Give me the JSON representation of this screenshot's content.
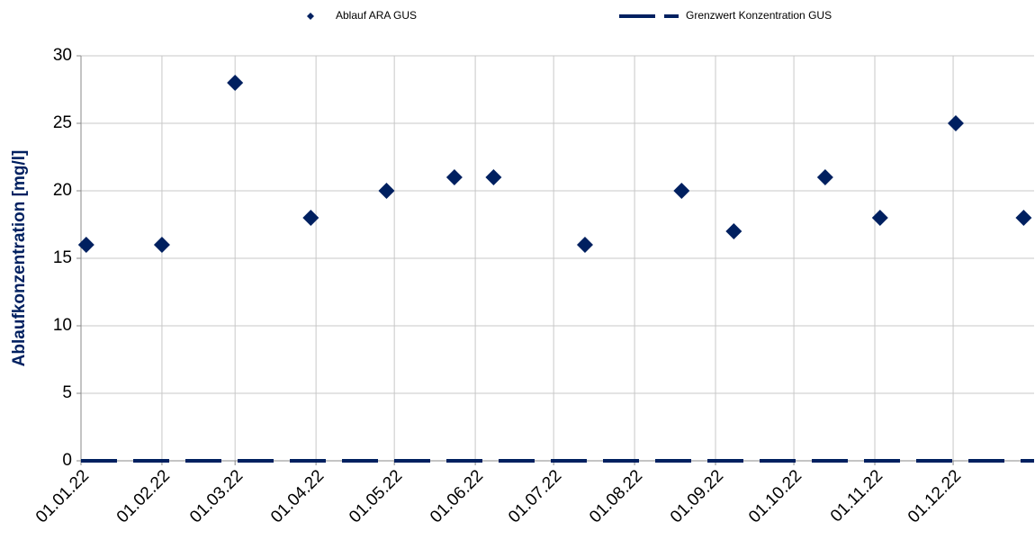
{
  "chart_data": {
    "type": "scatter",
    "y_label": "Ablaufkonzentration [mg/l]",
    "series": [
      {
        "name": "Ablauf ARA GUS",
        "color": "#002060",
        "marker": "diamond",
        "x": [
          "2022-01-03",
          "2022-02-01",
          "2022-03-01",
          "2022-03-30",
          "2022-04-28",
          "2022-05-24",
          "2022-06-08",
          "2022-07-13",
          "2022-08-19",
          "2022-09-08",
          "2022-10-13",
          "2022-11-03",
          "2022-12-02",
          "2022-12-28"
        ],
        "values": [
          16,
          16,
          28,
          18,
          20,
          21,
          21,
          16,
          20,
          17,
          21,
          18,
          25,
          18
        ]
      },
      {
        "name": "Grenzwert Konzentration GUS",
        "color": "#002060",
        "marker": "dashed-line",
        "x": [
          "2022-01-01",
          "2023-01-01"
        ],
        "values": [
          0,
          0
        ]
      }
    ],
    "xlim": [
      "2022-01-01",
      "2023-01-01"
    ],
    "xticks": [
      {
        "value": "2022-01-01",
        "label": "01.01.22"
      },
      {
        "value": "2022-02-01",
        "label": "01.02.22"
      },
      {
        "value": "2022-03-01",
        "label": "01.03.22"
      },
      {
        "value": "2022-04-01",
        "label": "01.04.22"
      },
      {
        "value": "2022-05-01",
        "label": "01.05.22"
      },
      {
        "value": "2022-06-01",
        "label": "01.06.22"
      },
      {
        "value": "2022-07-01",
        "label": "01.07.22"
      },
      {
        "value": "2022-08-01",
        "label": "01.08.22"
      },
      {
        "value": "2022-09-01",
        "label": "01.09.22"
      },
      {
        "value": "2022-10-01",
        "label": "01.10.22"
      },
      {
        "value": "2022-11-01",
        "label": "01.11.22"
      },
      {
        "value": "2022-12-01",
        "label": "01.12.22"
      }
    ],
    "ylim": [
      0,
      30
    ],
    "yticks": [
      0,
      5,
      10,
      15,
      20,
      25,
      30
    ],
    "grid": true,
    "legend": "top"
  }
}
